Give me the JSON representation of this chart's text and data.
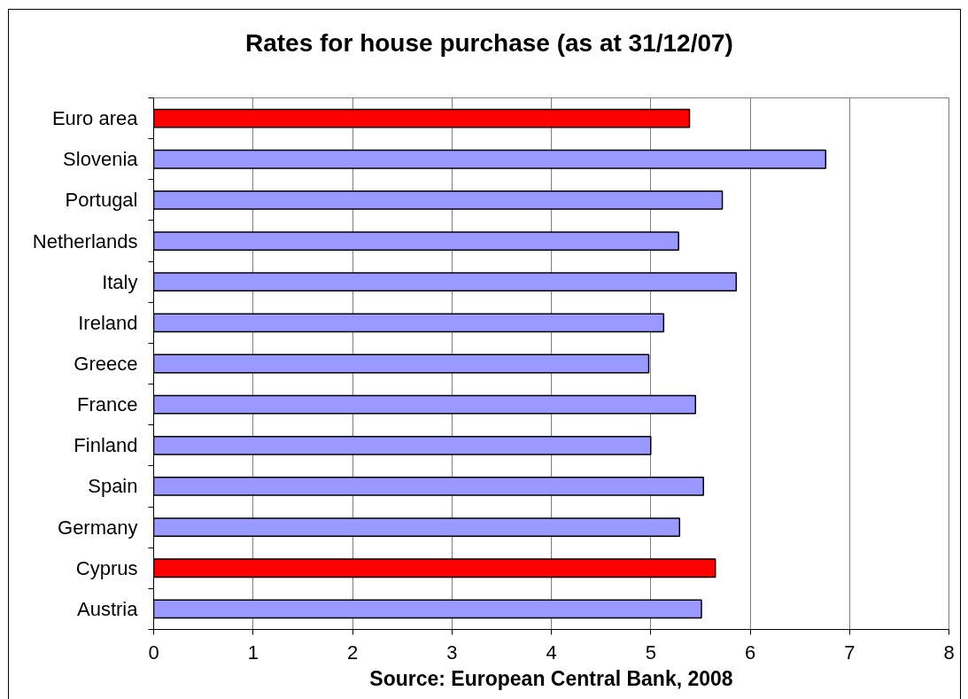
{
  "chart_data": {
    "type": "bar",
    "orientation": "horizontal",
    "title": "Rates for house purchase (as at 31/12/07)",
    "categories": [
      "Euro area",
      "Slovenia",
      "Portugal",
      "Netherlands",
      "Italy",
      "Ireland",
      "Greece",
      "France",
      "Finland",
      "Spain",
      "Germany",
      "Cyprus",
      "Austria"
    ],
    "values": [
      5.39,
      6.76,
      5.72,
      5.28,
      5.86,
      5.13,
      4.98,
      5.45,
      5.0,
      5.53,
      5.29,
      5.65,
      5.51
    ],
    "colors": [
      "#ff0000",
      "#9999ff",
      "#9999ff",
      "#9999ff",
      "#9999ff",
      "#9999ff",
      "#9999ff",
      "#9999ff",
      "#9999ff",
      "#9999ff",
      "#9999ff",
      "#ff0000",
      "#9999ff"
    ],
    "xlim": [
      0,
      8
    ],
    "xticks": [
      0,
      1,
      2,
      3,
      4,
      5,
      6,
      7,
      8
    ],
    "grid": "x",
    "annotations": [
      "Source: European Central Bank, 2008"
    ]
  }
}
